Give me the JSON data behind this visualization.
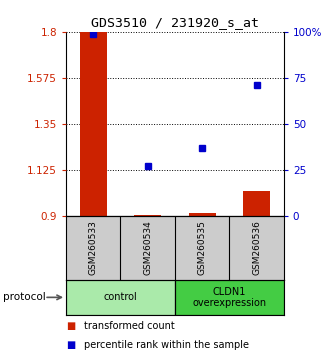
{
  "title": "GDS3510 / 231920_s_at",
  "samples": [
    "GSM260533",
    "GSM260534",
    "GSM260535",
    "GSM260536"
  ],
  "groups": [
    {
      "label": "control",
      "color": "#aaeaaa",
      "n_samples": 2
    },
    {
      "label": "CLDN1\noverexpression",
      "color": "#44cc44",
      "n_samples": 2
    }
  ],
  "transformed_counts": [
    1.8,
    0.905,
    0.915,
    1.02
  ],
  "percentile_ranks": [
    99.0,
    27.0,
    37.0,
    71.0
  ],
  "ylim_left": [
    0.9,
    1.8
  ],
  "ylim_right": [
    0,
    100
  ],
  "yticks_left": [
    0.9,
    1.125,
    1.35,
    1.575,
    1.8
  ],
  "yticks_right": [
    0,
    25,
    50,
    75,
    100
  ],
  "ytick_labels_left": [
    "0.9",
    "1.125",
    "1.35",
    "1.575",
    "1.8"
  ],
  "ytick_labels_right": [
    "0",
    "25",
    "50",
    "75",
    "100%"
  ],
  "red_color": "#cc2200",
  "blue_color": "#0000cc",
  "bar_width": 0.5,
  "protocol_label": "protocol",
  "legend_items": [
    {
      "color": "#cc2200",
      "label": "transformed count"
    },
    {
      "color": "#0000cc",
      "label": "percentile rank within the sample"
    }
  ]
}
